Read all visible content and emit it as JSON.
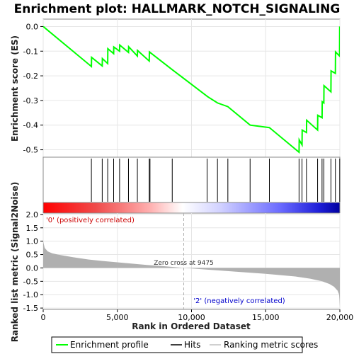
{
  "chart_data": [
    {
      "type": "line",
      "title": "Enrichment plot: HALLMARK_NOTCH_SIGNALING",
      "ylabel": "Enrichment score (ES)",
      "xlim": [
        0,
        20000
      ],
      "ylim": [
        -0.53,
        0.03
      ],
      "yticks": [
        "0.0",
        "-0.1",
        "-0.2",
        "-0.3",
        "-0.4",
        "-0.5"
      ],
      "ytick_values": [
        0.0,
        -0.1,
        -0.2,
        -0.3,
        -0.4,
        -0.5
      ],
      "series": [
        {
          "name": "Enrichment profile",
          "color": "#00ff00",
          "x": [
            0,
            3250,
            3260,
            3980,
            3990,
            4350,
            4360,
            4750,
            4760,
            5150,
            5160,
            5750,
            5760,
            6350,
            6360,
            7150,
            7160,
            8700,
            11100,
            11750,
            12450,
            13950,
            15250,
            17250,
            17260,
            17450,
            17460,
            17750,
            17760,
            18500,
            18510,
            18800,
            18810,
            18920,
            18930,
            19400,
            19410,
            19700,
            19710,
            19980,
            19990
          ],
          "y": [
            0.0,
            -0.162,
            -0.125,
            -0.16,
            -0.13,
            -0.15,
            -0.09,
            -0.11,
            -0.083,
            -0.1,
            -0.075,
            -0.105,
            -0.082,
            -0.12,
            -0.097,
            -0.14,
            -0.103,
            -0.175,
            -0.285,
            -0.31,
            -0.325,
            -0.4,
            -0.41,
            -0.51,
            -0.46,
            -0.48,
            -0.42,
            -0.43,
            -0.38,
            -0.42,
            -0.36,
            -0.37,
            -0.305,
            -0.31,
            -0.24,
            -0.265,
            -0.18,
            -0.19,
            -0.103,
            -0.12,
            0.0
          ]
        }
      ],
      "grid": true
    },
    {
      "type": "scatter",
      "name": "Hits",
      "x": [
        3250,
        3980,
        4350,
        4750,
        5150,
        5750,
        6350,
        7150,
        7200,
        8700,
        11050,
        11750,
        12450,
        13950,
        15250,
        17250,
        17450,
        17750,
        18500,
        18800,
        18920,
        19400,
        19700,
        19990
      ]
    },
    {
      "type": "area",
      "xlabel": "Rank in Ordered Dataset",
      "ylabel": "Ranked list metric (Signal2Noise)",
      "xlim": [
        0,
        20000
      ],
      "ylim": [
        -1.55,
        2.05
      ],
      "xticks": [
        "0",
        "5,000",
        "10,000",
        "15,000",
        "20,000"
      ],
      "xtick_values": [
        0,
        5000,
        10000,
        15000,
        20000
      ],
      "yticks": [
        "2.0",
        "1.5",
        "1.0",
        "0.5",
        "0.0",
        "-0.5",
        "-1.0",
        "-1.5"
      ],
      "ytick_values": [
        2.0,
        1.5,
        1.0,
        0.5,
        0.0,
        -0.5,
        -1.0,
        -1.5
      ],
      "x": [
        0,
        20,
        100,
        300,
        600,
        1000,
        2000,
        3000,
        4000,
        5000,
        6000,
        7000,
        8000,
        9475,
        11000,
        13000,
        15000,
        17000,
        18000,
        18800,
        19300,
        19600,
        19850,
        19950,
        20000
      ],
      "y": [
        1.0,
        0.95,
        0.75,
        0.62,
        0.55,
        0.5,
        0.4,
        0.32,
        0.26,
        0.21,
        0.16,
        0.11,
        0.07,
        0.0,
        -0.06,
        -0.14,
        -0.22,
        -0.32,
        -0.4,
        -0.5,
        -0.6,
        -0.7,
        -0.85,
        -1.0,
        -1.45
      ],
      "annotations": {
        "zero_cross": "Zero cross at 9475",
        "positive": "'0' (positively correlated)",
        "negative": "'2' (negatively correlated)"
      }
    }
  ],
  "legend": {
    "items": [
      {
        "label": "Enrichment profile",
        "color": "#00ff00"
      },
      {
        "label": "Hits",
        "color": "#000000"
      },
      {
        "label": "Ranking metric scores",
        "color": "#c0c0c0"
      }
    ]
  },
  "colors": {
    "profile": "#00ff00",
    "area": "#b0b0b0",
    "heat_stops": [
      {
        "at": 0.0,
        "color": "#ff0000"
      },
      {
        "at": 0.18,
        "color": "#f04c4c"
      },
      {
        "at": 0.36,
        "color": "#ffb0b0"
      },
      {
        "at": 0.47,
        "color": "#ffffff"
      },
      {
        "at": 0.6,
        "color": "#d0d0ff"
      },
      {
        "at": 0.8,
        "color": "#6a6aff"
      },
      {
        "at": 0.93,
        "color": "#1e1ed8"
      },
      {
        "at": 1.0,
        "color": "#0000a0"
      }
    ]
  }
}
